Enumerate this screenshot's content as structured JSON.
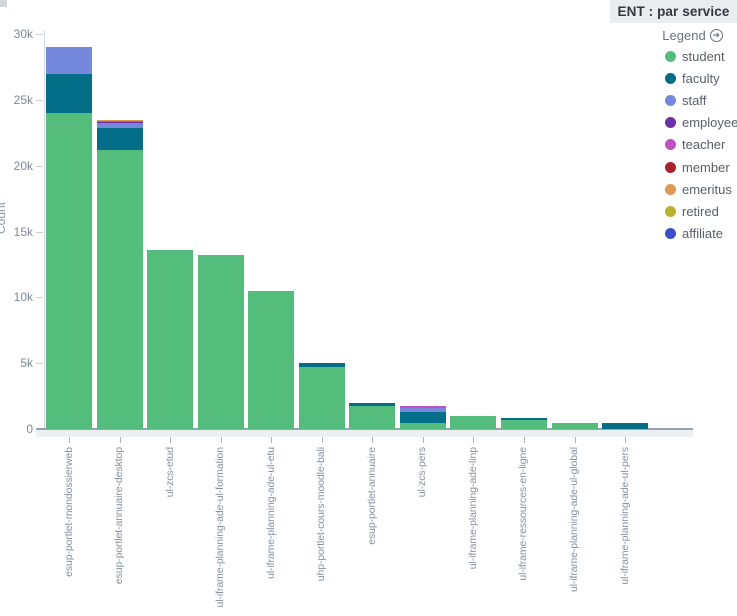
{
  "header": {
    "title": "ENT : par service"
  },
  "legend": {
    "title": "Legend",
    "toggle_icon": "arrow-right-circle",
    "items": [
      {
        "label": "student",
        "color": "#55bd7c"
      },
      {
        "label": "faculty",
        "color": "#046e89"
      },
      {
        "label": "staff",
        "color": "#7488dc"
      },
      {
        "label": "employee",
        "color": "#6f2fa8"
      },
      {
        "label": "teacher",
        "color": "#c250bd"
      },
      {
        "label": "member",
        "color": "#a8242f"
      },
      {
        "label": "emeritus",
        "color": "#dd9853"
      },
      {
        "label": "retired",
        "color": "#b9b02f"
      },
      {
        "label": "affiliate",
        "color": "#3d4fc4"
      }
    ]
  },
  "chart_data": {
    "type": "bar",
    "stacked": true,
    "title": "ENT : par service",
    "xlabel": "",
    "ylabel": "Count",
    "ylim": [
      0,
      30000
    ],
    "yticks": [
      0,
      5000,
      10000,
      15000,
      20000,
      25000,
      30000
    ],
    "ytick_labels": [
      "0",
      "5k",
      "10k",
      "15k",
      "20k",
      "25k",
      "30k"
    ],
    "grid": false,
    "legend_position": "right",
    "categories": [
      "esup-portlet-mondossierweb",
      "esup-portlet-annuaire-desktop",
      "ul-zcs-etud",
      "ul-iframe-planning-ade-ul-formation",
      "ul-iframe-planning-ade-ul-etu",
      "uhp-portlet-cours-moodle-bali",
      "esup-portlet-annuaire",
      "ul-zcs-pers",
      "ul-iframe-planning-ade-linp",
      "ul-iframe-ressources-en-ligne",
      "ul-iframe-planning-ade-ul-global",
      "ul-iframe-planning-ade-ul-pers"
    ],
    "series": [
      {
        "name": "student",
        "color": "#55bd7c",
        "values": [
          24000,
          21200,
          13600,
          13200,
          10500,
          4700,
          1750,
          420,
          990,
          650,
          480,
          0
        ]
      },
      {
        "name": "faculty",
        "color": "#046e89",
        "values": [
          2950,
          1680,
          0,
          0,
          0,
          300,
          250,
          900,
          0,
          160,
          0,
          430
        ]
      },
      {
        "name": "staff",
        "color": "#7488dc",
        "values": [
          2100,
          450,
          0,
          0,
          0,
          0,
          0,
          300,
          0,
          0,
          0,
          0
        ]
      },
      {
        "name": "employee",
        "color": "#6f2fa8",
        "values": [
          0,
          40,
          0,
          0,
          0,
          0,
          0,
          0,
          0,
          0,
          0,
          0
        ]
      },
      {
        "name": "teacher",
        "color": "#c250bd",
        "values": [
          0,
          40,
          0,
          0,
          0,
          0,
          0,
          130,
          0,
          0,
          0,
          0
        ]
      },
      {
        "name": "member",
        "color": "#a8242f",
        "values": [
          0,
          70,
          0,
          0,
          0,
          0,
          0,
          0,
          0,
          0,
          0,
          0
        ]
      },
      {
        "name": "emeritus",
        "color": "#dd9853",
        "values": [
          0,
          40,
          0,
          0,
          0,
          0,
          0,
          0,
          0,
          0,
          0,
          0
        ]
      },
      {
        "name": "retired",
        "color": "#b9b02f",
        "values": [
          0,
          0,
          0,
          0,
          0,
          0,
          0,
          0,
          0,
          0,
          0,
          0
        ]
      },
      {
        "name": "affiliate",
        "color": "#3d4fc4",
        "values": [
          0,
          0,
          0,
          0,
          0,
          0,
          0,
          0,
          0,
          0,
          0,
          40
        ]
      }
    ]
  }
}
